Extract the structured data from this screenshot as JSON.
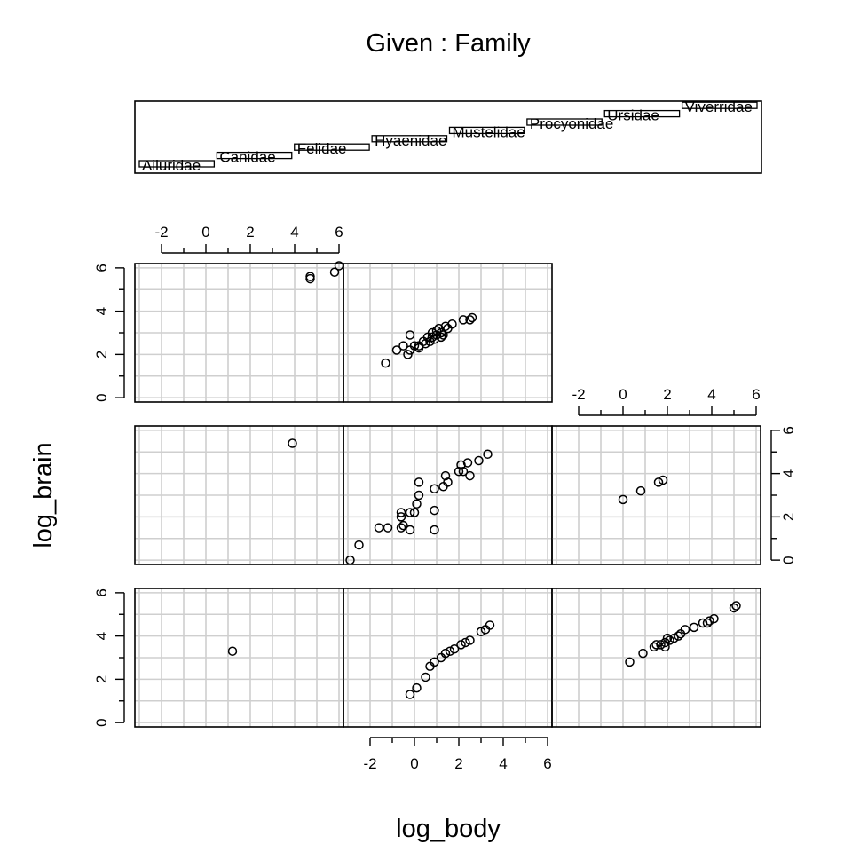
{
  "chart_data": {
    "type": "scatter",
    "title": "Given : Family",
    "xlabel": "log_body",
    "ylabel": "log_brain",
    "xlim": [
      -3.2,
      6.2
    ],
    "ylim": [
      -0.2,
      6.2
    ],
    "x_ticks": [
      -2,
      0,
      2,
      4,
      6
    ],
    "y_ticks": [
      0,
      2,
      4,
      6
    ],
    "grid": true,
    "given": {
      "variable": "Family",
      "levels": [
        "Ailuridae",
        "Canidae",
        "Felidae",
        "Hyaenidae",
        "Mustelidae",
        "Procyonidae",
        "Ursidae",
        "Viverridae"
      ]
    },
    "panels": [
      {
        "family": "Ailuridae",
        "points": [
          {
            "x": 1.2,
            "y": 3.3
          }
        ]
      },
      {
        "family": "Canidae",
        "points": [
          {
            "x": -0.2,
            "y": 1.3
          },
          {
            "x": 0.1,
            "y": 1.6
          },
          {
            "x": 0.5,
            "y": 2.1
          },
          {
            "x": 0.7,
            "y": 2.6
          },
          {
            "x": 0.9,
            "y": 2.8
          },
          {
            "x": 1.2,
            "y": 3.0
          },
          {
            "x": 1.4,
            "y": 3.2
          },
          {
            "x": 1.6,
            "y": 3.3
          },
          {
            "x": 1.8,
            "y": 3.4
          },
          {
            "x": 2.1,
            "y": 3.6
          },
          {
            "x": 2.3,
            "y": 3.7
          },
          {
            "x": 2.5,
            "y": 3.8
          },
          {
            "x": 3.0,
            "y": 4.2
          },
          {
            "x": 3.2,
            "y": 4.3
          },
          {
            "x": 3.4,
            "y": 4.5
          }
        ]
      },
      {
        "family": "Felidae",
        "points": [
          {
            "x": 0.3,
            "y": 2.8
          },
          {
            "x": 0.9,
            "y": 3.2
          },
          {
            "x": 1.4,
            "y": 3.5
          },
          {
            "x": 1.5,
            "y": 3.6
          },
          {
            "x": 1.7,
            "y": 3.6
          },
          {
            "x": 1.9,
            "y": 3.5
          },
          {
            "x": 1.9,
            "y": 3.7
          },
          {
            "x": 2.0,
            "y": 3.9
          },
          {
            "x": 2.1,
            "y": 3.8
          },
          {
            "x": 2.3,
            "y": 3.9
          },
          {
            "x": 2.5,
            "y": 4.0
          },
          {
            "x": 2.6,
            "y": 4.1
          },
          {
            "x": 2.8,
            "y": 4.3
          },
          {
            "x": 3.2,
            "y": 4.4
          },
          {
            "x": 3.6,
            "y": 4.6
          },
          {
            "x": 3.8,
            "y": 4.6
          },
          {
            "x": 3.9,
            "y": 4.7
          },
          {
            "x": 4.1,
            "y": 4.8
          },
          {
            "x": 5.0,
            "y": 5.3
          },
          {
            "x": 5.1,
            "y": 5.4
          }
        ]
      },
      {
        "family": "Hyaenidae",
        "points": [
          {
            "x": 3.9,
            "y": 5.4
          }
        ]
      },
      {
        "family": "Mustelidae",
        "points": [
          {
            "x": -2.9,
            "y": 0.0
          },
          {
            "x": -2.5,
            "y": 0.7
          },
          {
            "x": -1.6,
            "y": 1.5
          },
          {
            "x": -1.2,
            "y": 1.5
          },
          {
            "x": -0.6,
            "y": 1.5
          },
          {
            "x": -0.5,
            "y": 1.6
          },
          {
            "x": -0.6,
            "y": 2.0
          },
          {
            "x": -0.6,
            "y": 2.2
          },
          {
            "x": -0.2,
            "y": 2.2
          },
          {
            "x": 0.0,
            "y": 2.2
          },
          {
            "x": -0.2,
            "y": 1.4
          },
          {
            "x": 0.9,
            "y": 1.4
          },
          {
            "x": 0.9,
            "y": 2.3
          },
          {
            "x": 0.9,
            "y": 3.3
          },
          {
            "x": 0.2,
            "y": 3.6
          },
          {
            "x": 0.2,
            "y": 3.0
          },
          {
            "x": 0.1,
            "y": 2.6
          },
          {
            "x": 1.3,
            "y": 3.4
          },
          {
            "x": 1.5,
            "y": 3.6
          },
          {
            "x": 1.4,
            "y": 3.9
          },
          {
            "x": 2.0,
            "y": 4.1
          },
          {
            "x": 2.1,
            "y": 4.4
          },
          {
            "x": 2.2,
            "y": 4.1
          },
          {
            "x": 2.4,
            "y": 4.5
          },
          {
            "x": 2.5,
            "y": 3.9
          },
          {
            "x": 2.9,
            "y": 4.6
          },
          {
            "x": 3.3,
            "y": 4.9
          }
        ]
      },
      {
        "family": "Procyonidae",
        "points": [
          {
            "x": 0.0,
            "y": 2.8
          },
          {
            "x": 0.8,
            "y": 3.2
          },
          {
            "x": 1.6,
            "y": 3.6
          },
          {
            "x": 1.8,
            "y": 3.7
          }
        ]
      },
      {
        "family": "Ursidae",
        "points": [
          {
            "x": 4.7,
            "y": 5.6
          },
          {
            "x": 4.7,
            "y": 5.5
          },
          {
            "x": 5.8,
            "y": 5.8
          },
          {
            "x": 6.0,
            "y": 6.1
          }
        ]
      },
      {
        "family": "Viverridae",
        "points": [
          {
            "x": -1.3,
            "y": 1.6
          },
          {
            "x": -0.8,
            "y": 2.2
          },
          {
            "x": -0.5,
            "y": 2.4
          },
          {
            "x": -0.3,
            "y": 2.0
          },
          {
            "x": -0.2,
            "y": 2.2
          },
          {
            "x": 0.0,
            "y": 2.4
          },
          {
            "x": 0.2,
            "y": 2.3
          },
          {
            "x": 0.2,
            "y": 2.4
          },
          {
            "x": 0.4,
            "y": 2.6
          },
          {
            "x": 0.5,
            "y": 2.5
          },
          {
            "x": 0.6,
            "y": 2.8
          },
          {
            "x": 0.7,
            "y": 2.6
          },
          {
            "x": 0.8,
            "y": 2.8
          },
          {
            "x": 0.8,
            "y": 3.0
          },
          {
            "x": 0.9,
            "y": 2.7
          },
          {
            "x": 1.0,
            "y": 3.1
          },
          {
            "x": 1.0,
            "y": 2.9
          },
          {
            "x": 1.1,
            "y": 3.2
          },
          {
            "x": 1.2,
            "y": 2.8
          },
          {
            "x": 1.2,
            "y": 3.0
          },
          {
            "x": 1.3,
            "y": 2.9
          },
          {
            "x": 1.4,
            "y": 3.3
          },
          {
            "x": 1.5,
            "y": 3.2
          },
          {
            "x": 1.7,
            "y": 3.4
          },
          {
            "x": -0.2,
            "y": 2.9
          },
          {
            "x": 2.2,
            "y": 3.6
          },
          {
            "x": 2.5,
            "y": 3.6
          },
          {
            "x": 2.6,
            "y": 3.7
          }
        ]
      }
    ]
  }
}
